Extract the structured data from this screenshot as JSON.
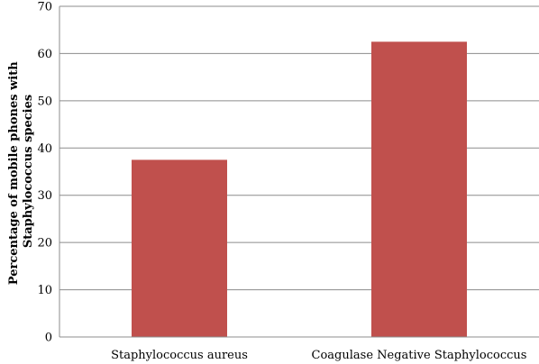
{
  "chart_data": {
    "type": "bar",
    "title": "",
    "xlabel": "",
    "ylabel_lines": [
      "Percentage of mobile phones with",
      "Staphylococcus species"
    ],
    "categories": [
      "Staphylococcus aureus",
      "Coagulase Negative Staphylococcus"
    ],
    "values": [
      37.5,
      62.5
    ],
    "ylim": [
      0,
      70
    ],
    "yticks": [
      0,
      10,
      20,
      30,
      40,
      50,
      60,
      70
    ],
    "grid": true,
    "legend": "none",
    "bar_color": "#c0504d"
  }
}
